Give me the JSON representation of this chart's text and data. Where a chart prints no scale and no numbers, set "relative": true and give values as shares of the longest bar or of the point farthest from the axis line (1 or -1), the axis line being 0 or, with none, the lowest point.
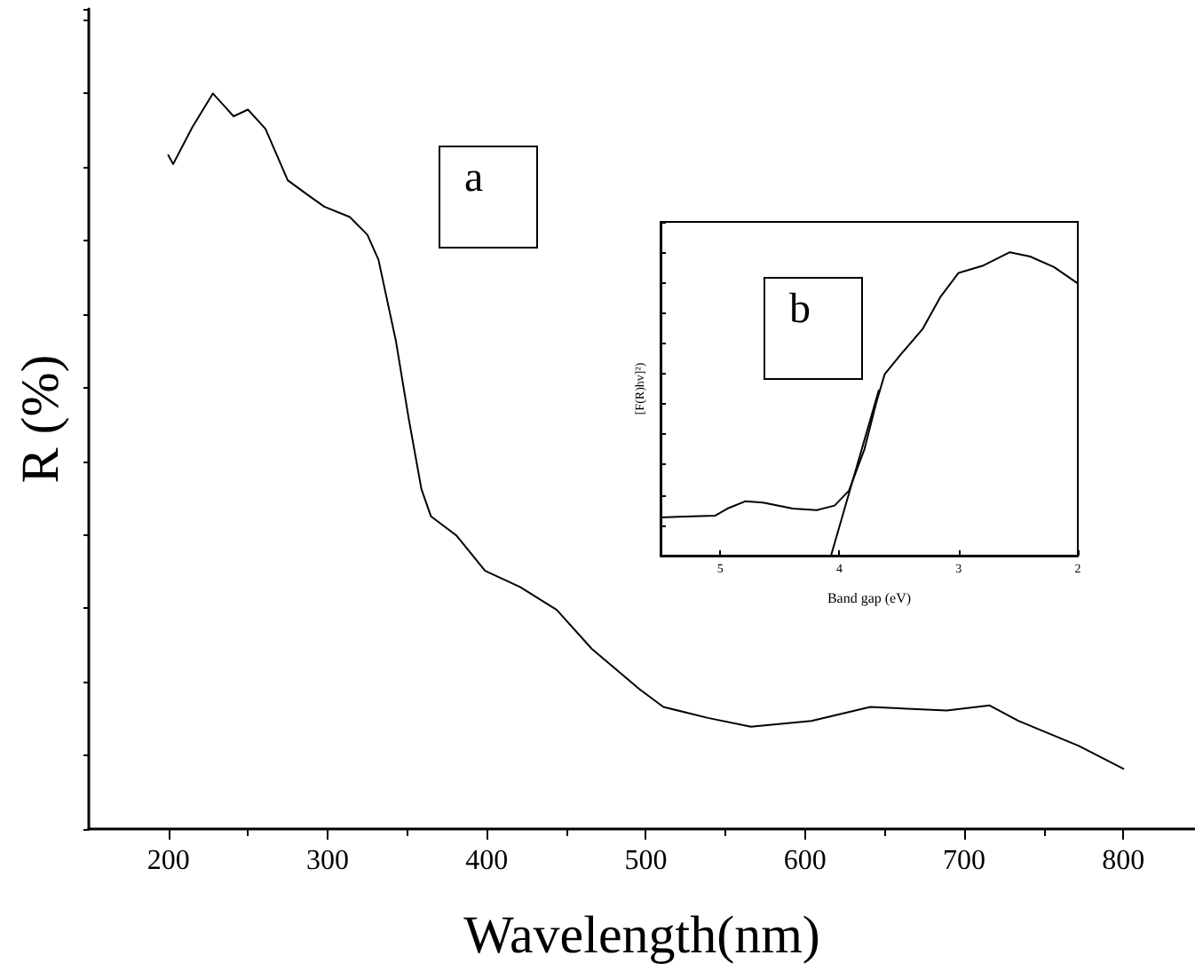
{
  "chart_data": [
    {
      "type": "line",
      "xlabel": "Wavelength(nm)",
      "ylabel": "R (%)",
      "relative": true,
      "xlim": [
        150,
        845
      ],
      "xticks": [
        200,
        300,
        400,
        500,
        600,
        700,
        800
      ],
      "marker": "none",
      "annotations": [
        "a"
      ],
      "series": [
        {
          "color": "#000000",
          "x": [
            200,
            203,
            215,
            228,
            241,
            250,
            261,
            275,
            287,
            298,
            314,
            325,
            332,
            343,
            351,
            359,
            365,
            381,
            399,
            421,
            444,
            466,
            496,
            511,
            539,
            566,
            604,
            641,
            689,
            716,
            734,
            772,
            800
          ],
          "values": [
            0.916,
            0.904,
            0.954,
            1.0,
            0.969,
            0.978,
            0.952,
            0.882,
            0.863,
            0.846,
            0.832,
            0.808,
            0.774,
            0.663,
            0.558,
            0.462,
            0.425,
            0.399,
            0.351,
            0.329,
            0.298,
            0.245,
            0.19,
            0.166,
            0.151,
            0.139,
            0.147,
            0.166,
            0.161,
            0.168,
            0.147,
            0.113,
            0.082
          ]
        }
      ]
    },
    {
      "type": "line",
      "xlabel": "Band gap (eV)",
      "ylabel": "[F(R)hv]²)",
      "relative": true,
      "xlim": [
        5.5,
        2
      ],
      "xticks": [
        5,
        4,
        3,
        2
      ],
      "marker": "none",
      "annotations": [
        "b"
      ],
      "series": [
        {
          "color": "#000000",
          "x": [
            5.5,
            5.04,
            4.94,
            4.79,
            4.64,
            4.39,
            4.19,
            4.04,
            3.92,
            3.79,
            3.69,
            3.62,
            3.47,
            3.3,
            3.15,
            3.0,
            2.8,
            2.57,
            2.4,
            2.2,
            2.0
          ],
          "values": [
            0.126,
            0.132,
            0.155,
            0.179,
            0.175,
            0.155,
            0.15,
            0.165,
            0.214,
            0.35,
            0.505,
            0.598,
            0.67,
            0.748,
            0.854,
            0.932,
            0.955,
            1.0,
            0.986,
            0.951,
            0.897
          ]
        },
        {
          "color": "#000000",
          "x": [
            4.07,
            3.67
          ],
          "values": [
            0,
            0.544
          ]
        }
      ]
    }
  ]
}
